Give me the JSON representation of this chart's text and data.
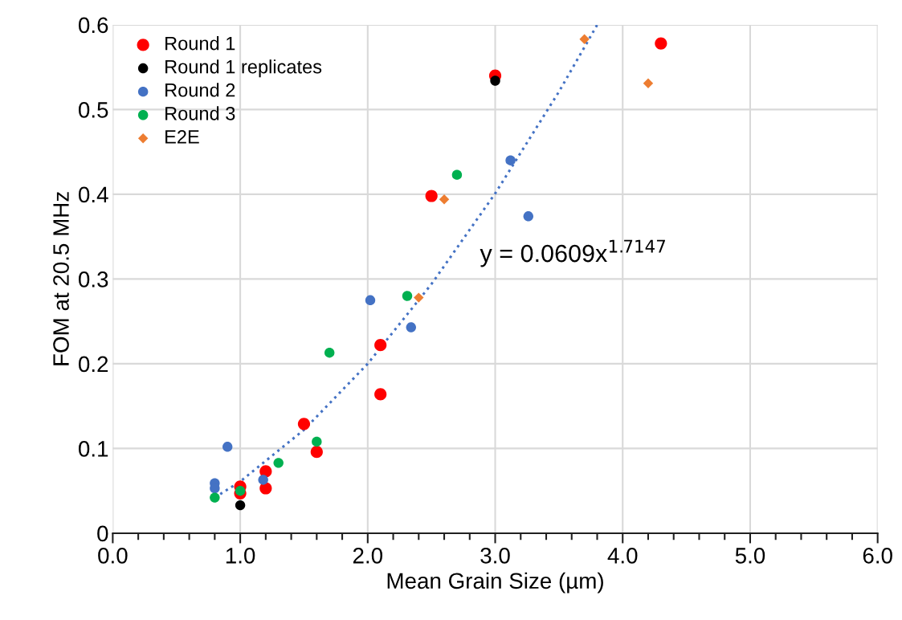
{
  "chart_data": {
    "type": "scatter",
    "xlabel": "Mean Grain Size (µm)",
    "ylabel": "FOM at 20.5 MHz",
    "xlim": [
      0,
      6
    ],
    "ylim": [
      0,
      0.6
    ],
    "xticks": [
      {
        "value": 0,
        "label": "0.0"
      },
      {
        "value": 1,
        "label": "1.0"
      },
      {
        "value": 2,
        "label": "2.0"
      },
      {
        "value": 3,
        "label": "3.0"
      },
      {
        "value": 4,
        "label": "4.0"
      },
      {
        "value": 5,
        "label": "5.0"
      },
      {
        "value": 6,
        "label": "6.0"
      }
    ],
    "yticks": [
      0,
      0.1,
      0.2,
      0.3,
      0.4,
      0.5,
      0.6
    ],
    "grid": true,
    "legend": "top left",
    "marker": "circle",
    "series": [
      {
        "name": "Round 1",
        "color": "#ff0000",
        "x": [
          1.0,
          1.0,
          1.2,
          1.2,
          1.5,
          1.6,
          2.1,
          2.1,
          2.5,
          3.0,
          4.3
        ],
        "values": [
          0.055,
          0.047,
          0.073,
          0.053,
          0.129,
          0.096,
          0.222,
          0.164,
          0.398,
          0.54,
          0.578
        ]
      },
      {
        "name": "Round 1 replicates",
        "color": "#000000",
        "x": [
          1.0,
          3.0
        ],
        "values": [
          0.033,
          0.534
        ]
      },
      {
        "name": "Round 2",
        "color": "#4472c4",
        "x": [
          0.8,
          0.8,
          0.9,
          1.18,
          2.02,
          2.34,
          3.12,
          3.26
        ],
        "values": [
          0.059,
          0.053,
          0.102,
          0.063,
          0.275,
          0.243,
          0.44,
          0.374
        ]
      },
      {
        "name": "Round 3",
        "color": "#00b050",
        "x": [
          0.8,
          1.0,
          1.3,
          1.6,
          1.7,
          2.31,
          2.7
        ],
        "values": [
          0.042,
          0.05,
          0.083,
          0.108,
          0.213,
          0.28,
          0.423
        ]
      },
      {
        "name": "E2E",
        "color": "#ed7d31",
        "marker": "diamond",
        "x": [
          2.4,
          2.6,
          3.7,
          4.2
        ],
        "values": [
          0.278,
          0.394,
          0.583,
          0.531
        ]
      },
      {
        "type": "line",
        "color": "#4472c4",
        "line_style": "dotted",
        "marker": "none",
        "x": [
          0.8,
          1.0,
          1.5,
          2.0,
          2.5,
          3.0,
          3.5,
          3.8
        ],
        "values": [
          0.042,
          0.061,
          0.122,
          0.2,
          0.294,
          0.401,
          0.521,
          0.6
        ]
      }
    ],
    "annotations": [
      "y = 0.0609x$^{1.7147}$"
    ]
  }
}
